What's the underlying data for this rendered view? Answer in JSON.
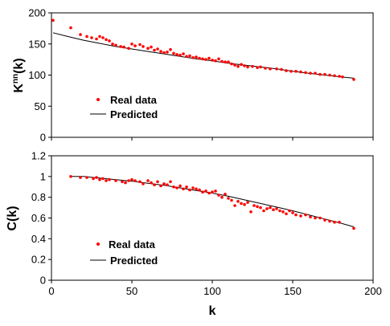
{
  "colors": {
    "real": "#ff0000",
    "predicted": "#000000"
  },
  "chart_data": [
    {
      "type": "scatter",
      "ylabel": "K",
      "ylabel_sup": "nn",
      "ylabel_suffix": "(k)",
      "xlim": [
        0,
        200
      ],
      "ylim": [
        0,
        200
      ],
      "xticks": [
        0,
        50,
        100,
        150,
        200
      ],
      "yticks": [
        0,
        50,
        100,
        150,
        200
      ],
      "show_xtick_labels": false,
      "legend": {
        "placement": "lower-left",
        "entries": [
          "Real data",
          "Predicted"
        ]
      },
      "series": [
        {
          "name": "Real data",
          "kind": "points",
          "points": [
            [
              1,
              188
            ],
            [
              12,
              176
            ],
            [
              18,
              165
            ],
            [
              22,
              162
            ],
            [
              25,
              160
            ],
            [
              28,
              158
            ],
            [
              30,
              162
            ],
            [
              32,
              160
            ],
            [
              34,
              157
            ],
            [
              36,
              155
            ],
            [
              38,
              150
            ],
            [
              40,
              148
            ],
            [
              43,
              146
            ],
            [
              45,
              145
            ],
            [
              48,
              143
            ],
            [
              50,
              150
            ],
            [
              52,
              147
            ],
            [
              55,
              149
            ],
            [
              57,
              146
            ],
            [
              60,
              143
            ],
            [
              62,
              145
            ],
            [
              64,
              140
            ],
            [
              66,
              142
            ],
            [
              68,
              138
            ],
            [
              70,
              136
            ],
            [
              72,
              137
            ],
            [
              74,
              141
            ],
            [
              76,
              135
            ],
            [
              78,
              133
            ],
            [
              80,
              132
            ],
            [
              82,
              134
            ],
            [
              84,
              130
            ],
            [
              86,
              131
            ],
            [
              88,
              128
            ],
            [
              90,
              129
            ],
            [
              92,
              127
            ],
            [
              94,
              126
            ],
            [
              96,
              125
            ],
            [
              98,
              127
            ],
            [
              100,
              124
            ],
            [
              102,
              123
            ],
            [
              104,
              126
            ],
            [
              106,
              122
            ],
            [
              108,
              121
            ],
            [
              110,
              121
            ],
            [
              112,
              118
            ],
            [
              114,
              116
            ],
            [
              116,
              114
            ],
            [
              118,
              117
            ],
            [
              120,
              115
            ],
            [
              122,
              113
            ],
            [
              125,
              114
            ],
            [
              128,
              112
            ],
            [
              130,
              113
            ],
            [
              133,
              111
            ],
            [
              136,
              110
            ],
            [
              140,
              110
            ],
            [
              143,
              109
            ],
            [
              146,
              107
            ],
            [
              149,
              106
            ],
            [
              152,
              106
            ],
            [
              155,
              105
            ],
            [
              158,
              104
            ],
            [
              161,
              103
            ],
            [
              164,
              103
            ],
            [
              167,
              101
            ],
            [
              170,
              101
            ],
            [
              173,
              100
            ],
            [
              176,
              99
            ],
            [
              179,
              98
            ],
            [
              181,
              97
            ],
            [
              188,
              93
            ]
          ]
        },
        {
          "name": "Predicted",
          "kind": "line",
          "points": [
            [
              1,
              168
            ],
            [
              10,
              162
            ],
            [
              20,
              156
            ],
            [
              30,
              151
            ],
            [
              40,
              146
            ],
            [
              50,
              142
            ],
            [
              60,
              138
            ],
            [
              70,
              134
            ],
            [
              80,
              130
            ],
            [
              90,
              126
            ],
            [
              100,
              123
            ],
            [
              110,
              119
            ],
            [
              120,
              116
            ],
            [
              130,
              113
            ],
            [
              140,
              110
            ],
            [
              150,
              106
            ],
            [
              160,
              103
            ],
            [
              170,
              100
            ],
            [
              180,
              97
            ],
            [
              188,
              95
            ]
          ]
        }
      ]
    },
    {
      "type": "scatter",
      "xlabel": "k",
      "ylabel": "C(k)",
      "xlim": [
        0,
        200
      ],
      "ylim": [
        0,
        1.2
      ],
      "xticks": [
        0,
        50,
        100,
        150,
        200
      ],
      "yticks": [
        0,
        0.2,
        0.4,
        0.6,
        0.8,
        1,
        1.2
      ],
      "show_xtick_labels": true,
      "legend": {
        "placement": "lower-left",
        "entries": [
          "Real data",
          "Predicted"
        ]
      },
      "series": [
        {
          "name": "Real data",
          "kind": "points",
          "points": [
            [
              12,
              1.0
            ],
            [
              18,
              0.99
            ],
            [
              22,
              0.99
            ],
            [
              26,
              0.98
            ],
            [
              28,
              0.99
            ],
            [
              30,
              0.97
            ],
            [
              32,
              0.98
            ],
            [
              34,
              0.96
            ],
            [
              36,
              0.97
            ],
            [
              40,
              0.96
            ],
            [
              44,
              0.95
            ],
            [
              46,
              0.94
            ],
            [
              48,
              0.96
            ],
            [
              50,
              0.97
            ],
            [
              52,
              0.96
            ],
            [
              55,
              0.95
            ],
            [
              57,
              0.93
            ],
            [
              60,
              0.96
            ],
            [
              62,
              0.94
            ],
            [
              64,
              0.92
            ],
            [
              66,
              0.95
            ],
            [
              68,
              0.91
            ],
            [
              70,
              0.93
            ],
            [
              72,
              0.92
            ],
            [
              74,
              0.95
            ],
            [
              76,
              0.9
            ],
            [
              78,
              0.89
            ],
            [
              80,
              0.91
            ],
            [
              82,
              0.88
            ],
            [
              84,
              0.9
            ],
            [
              86,
              0.87
            ],
            [
              88,
              0.89
            ],
            [
              90,
              0.88
            ],
            [
              92,
              0.87
            ],
            [
              94,
              0.85
            ],
            [
              96,
              0.86
            ],
            [
              98,
              0.84
            ],
            [
              100,
              0.85
            ],
            [
              102,
              0.86
            ],
            [
              104,
              0.82
            ],
            [
              106,
              0.8
            ],
            [
              108,
              0.83
            ],
            [
              110,
              0.79
            ],
            [
              112,
              0.77
            ],
            [
              114,
              0.72
            ],
            [
              116,
              0.76
            ],
            [
              118,
              0.74
            ],
            [
              120,
              0.73
            ],
            [
              122,
              0.75
            ],
            [
              124,
              0.66
            ],
            [
              126,
              0.72
            ],
            [
              128,
              0.71
            ],
            [
              130,
              0.7
            ],
            [
              132,
              0.67
            ],
            [
              134,
              0.69
            ],
            [
              136,
              0.7
            ],
            [
              138,
              0.68
            ],
            [
              140,
              0.69
            ],
            [
              142,
              0.67
            ],
            [
              144,
              0.66
            ],
            [
              146,
              0.64
            ],
            [
              148,
              0.67
            ],
            [
              150,
              0.65
            ],
            [
              152,
              0.63
            ],
            [
              155,
              0.62
            ],
            [
              158,
              0.63
            ],
            [
              161,
              0.61
            ],
            [
              164,
              0.6
            ],
            [
              167,
              0.6
            ],
            [
              170,
              0.58
            ],
            [
              173,
              0.57
            ],
            [
              176,
              0.56
            ],
            [
              179,
              0.56
            ],
            [
              188,
              0.5
            ]
          ]
        },
        {
          "name": "Predicted",
          "kind": "line",
          "points": [
            [
              12,
              1.0
            ],
            [
              20,
              1.0
            ],
            [
              30,
              0.985
            ],
            [
              40,
              0.97
            ],
            [
              50,
              0.955
            ],
            [
              60,
              0.935
            ],
            [
              70,
              0.915
            ],
            [
              80,
              0.89
            ],
            [
              90,
              0.865
            ],
            [
              100,
              0.84
            ],
            [
              110,
              0.81
            ],
            [
              120,
              0.775
            ],
            [
              130,
              0.74
            ],
            [
              140,
              0.705
            ],
            [
              150,
              0.67
            ],
            [
              160,
              0.63
            ],
            [
              170,
              0.59
            ],
            [
              180,
              0.55
            ],
            [
              188,
              0.515
            ]
          ]
        }
      ]
    }
  ]
}
